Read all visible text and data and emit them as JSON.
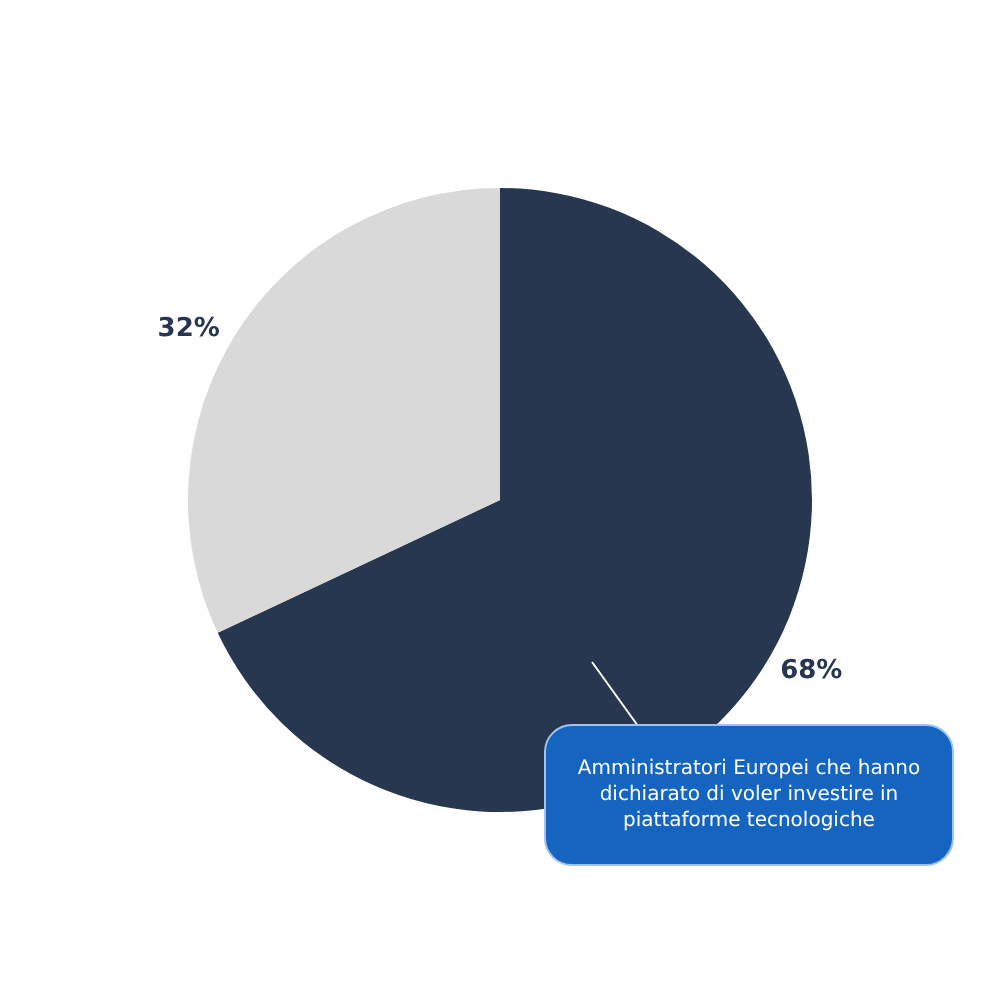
{
  "chart_data": {
    "type": "pie",
    "categories": [
      null,
      null
    ],
    "values": [
      68,
      32
    ],
    "colors": [
      "#27374f",
      "#d9d9d9"
    ],
    "value_labels": [
      "68%",
      "32%"
    ],
    "annotations": [
      "Amministratori Europei che hanno dichiarato di voler investire in piattaforme tecnologiche"
    ]
  }
}
